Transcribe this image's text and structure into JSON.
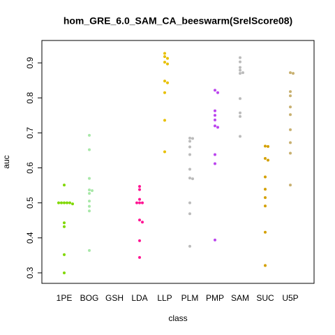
{
  "chart_data": {
    "type": "beeswarm",
    "title": "hom_GRE_6.0_SAM_CA_beeswarm(SrelScore08)",
    "x_label": "class",
    "y_label": "auc",
    "categories": [
      "1PE",
      "BOG",
      "GSH",
      "LDA",
      "LLP",
      "PLM",
      "PMP",
      "SAM",
      "SUC",
      "U5P"
    ],
    "colors": [
      "#80d800",
      "#a8e8a8",
      "#a0a0a0",
      "#ff1493",
      "#e8c000",
      "#bbbbbb",
      "#bb44ee",
      "#bbbbbb",
      "#d4a000",
      "#c8b070"
    ],
    "values": [
      [
        0.551,
        0.5,
        0.5,
        0.5,
        0.5,
        0.5,
        0.497,
        0.443,
        0.432,
        0.352,
        0.3
      ],
      [
        0.693,
        0.652,
        0.57,
        0.537,
        0.535,
        0.527,
        0.505,
        0.49,
        0.477,
        0.364
      ],
      [],
      [
        0.547,
        0.538,
        0.51,
        0.5,
        0.5,
        0.5,
        0.451,
        0.445,
        0.392,
        0.344
      ],
      [
        0.927,
        0.918,
        0.913,
        0.902,
        0.897,
        0.848,
        0.843,
        0.815,
        0.736,
        0.646
      ],
      [
        0.685,
        0.684,
        0.676,
        0.66,
        0.638,
        0.596,
        0.571,
        0.569,
        0.5,
        0.469,
        0.376
      ],
      [
        0.822,
        0.815,
        0.763,
        0.75,
        0.737,
        0.72,
        0.716,
        0.638,
        0.612,
        0.394
      ],
      [
        0.915,
        0.903,
        0.887,
        0.879,
        0.872,
        0.87,
        0.798,
        0.757,
        0.747,
        0.69
      ],
      [
        0.662,
        0.661,
        0.627,
        0.622,
        0.574,
        0.539,
        0.515,
        0.491,
        0.416,
        0.321
      ],
      [
        0.872,
        0.87,
        0.818,
        0.806,
        0.774,
        0.752,
        0.709,
        0.672,
        0.642,
        0.551
      ]
    ],
    "ylim": [
      0.27,
      0.964
    ],
    "yticks": [
      0.3,
      0.4,
      0.5,
      0.6,
      0.7,
      0.8,
      0.9
    ]
  }
}
